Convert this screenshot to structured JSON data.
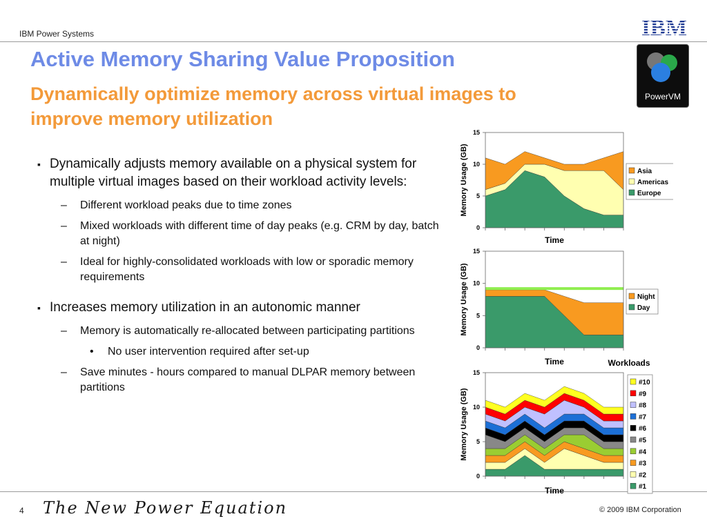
{
  "header": {
    "brand": "IBM Power Systems",
    "logo_text": "IBM",
    "badge_text": "PowerVM"
  },
  "title": "Active Memory Sharing Value Proposition",
  "subtitle": "Dynamically optimize memory across virtual images to improve memory utilization",
  "bullets": [
    {
      "level": 1,
      "text": "Dynamically adjusts memory available on a physical system for multiple virtual images based on their workload activity levels:"
    },
    {
      "level": 2,
      "text": "Different workload peaks due to time zones"
    },
    {
      "level": 2,
      "text": "Mixed workloads with different time of day peaks (e.g. CRM by day, batch at night)"
    },
    {
      "level": 2,
      "text": "Ideal for highly-consolidated workloads with low or sporadic memory requirements"
    },
    {
      "level": 1,
      "text": "Increases memory utilization in an autonomic manner"
    },
    {
      "level": 2,
      "text": "Memory is automatically re-allocated  between participating partitions"
    },
    {
      "level": 3,
      "text": "No user intervention required after set-up"
    },
    {
      "level": 2,
      "text": "Save minutes - hours compared to manual DLPAR memory between partitions"
    }
  ],
  "footer": {
    "page_number": "4",
    "tagline": "The New Power Equation",
    "copyright": "© 2009 IBM Corporation"
  },
  "chart_data": [
    {
      "type": "area",
      "stacked": true,
      "x": [
        1,
        2,
        3,
        4,
        5,
        6,
        7,
        8
      ],
      "xlabel": "Time",
      "ylabel": "Memory Usage (GB)",
      "ylim": [
        0,
        15
      ],
      "yticks": [
        "0",
        "5",
        "10",
        "15"
      ],
      "grid": false,
      "legend": "right",
      "series": [
        {
          "name": "Europe",
          "color": "#3a9a6a",
          "values": [
            5,
            6,
            9,
            8,
            5,
            3,
            2,
            2
          ]
        },
        {
          "name": "Americas",
          "color": "#ffffb0",
          "values": [
            1,
            1,
            1,
            2,
            4,
            6,
            7,
            4
          ]
        },
        {
          "name": "Asia",
          "color": "#f89a20",
          "values": [
            5,
            3,
            2,
            1,
            1,
            1,
            2,
            6
          ]
        }
      ]
    },
    {
      "type": "area",
      "stacked": true,
      "x": [
        1,
        2,
        3,
        4,
        5,
        6,
        7,
        8
      ],
      "xlabel": "Time",
      "ylabel": "Memory Usage (GB)",
      "ylim": [
        0,
        15
      ],
      "yticks": [
        "0",
        "5",
        "10",
        "15"
      ],
      "grid": false,
      "legend": "right",
      "reference_line": {
        "value": 9.2,
        "color": "#90ee50"
      },
      "series": [
        {
          "name": "Day",
          "color": "#3a9a6a",
          "values": [
            8,
            8,
            8,
            8,
            5,
            2,
            2,
            2
          ]
        },
        {
          "name": "Night",
          "color": "#f89a20",
          "values": [
            1,
            1,
            1,
            1,
            3,
            5,
            5,
            5
          ]
        }
      ]
    },
    {
      "type": "area",
      "stacked": true,
      "x": [
        1,
        2,
        3,
        4,
        5,
        6,
        7,
        8
      ],
      "xlabel": "Time",
      "ylabel": "Memory Usage (GB)",
      "ylim": [
        0,
        15
      ],
      "yticks": [
        "0",
        "5",
        "10",
        "15"
      ],
      "grid": false,
      "legend": "right",
      "legend_title": "Workloads",
      "series": [
        {
          "name": "#1",
          "color": "#3a9a6a",
          "values": [
            1,
            1,
            3,
            1,
            1,
            1,
            1,
            1
          ]
        },
        {
          "name": "#2",
          "color": "#ffffb0",
          "values": [
            1,
            1,
            1,
            1,
            3,
            2,
            1,
            1
          ]
        },
        {
          "name": "#3",
          "color": "#f89a20",
          "values": [
            1,
            1,
            1,
            1,
            1,
            1,
            1,
            1
          ]
        },
        {
          "name": "#4",
          "color": "#9acd32",
          "values": [
            1,
            1,
            1,
            1,
            1,
            2,
            1,
            1
          ]
        },
        {
          "name": "#5",
          "color": "#888888",
          "values": [
            2,
            1,
            1,
            1,
            1,
            1,
            1,
            1
          ]
        },
        {
          "name": "#6",
          "color": "#000000",
          "values": [
            1,
            1,
            1,
            1,
            1,
            1,
            1,
            1
          ]
        },
        {
          "name": "#7",
          "color": "#1c6fd6",
          "values": [
            1,
            1,
            1,
            1,
            1,
            1,
            1,
            1
          ]
        },
        {
          "name": "#8",
          "color": "#c0c0ff",
          "values": [
            1,
            1,
            1,
            2,
            2,
            1,
            1,
            1
          ]
        },
        {
          "name": "#9",
          "color": "#ff0000",
          "values": [
            1,
            1,
            1,
            1,
            1,
            1,
            1,
            1
          ]
        },
        {
          "name": "#10",
          "color": "#ffff20",
          "values": [
            1,
            1,
            1,
            1,
            1,
            1,
            1,
            1
          ]
        }
      ]
    }
  ]
}
